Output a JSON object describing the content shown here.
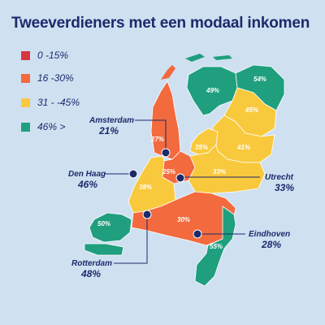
{
  "title": "Tweeverdieners met een modaal inkomen",
  "colors": {
    "red": "#d93540",
    "orange": "#f26a3d",
    "yellow": "#f9c93d",
    "green": "#1f9f7e",
    "navy": "#1c2a6b"
  },
  "legend": [
    {
      "label": "0 -15%",
      "color": "#d93540"
    },
    {
      "label": "16 -30%",
      "color": "#f26a3d"
    },
    {
      "label": "31 - -45%",
      "color": "#f9c93d"
    },
    {
      "label": "46% >",
      "color": "#1f9f7e"
    }
  ],
  "provinces": {
    "friesland": "49%",
    "groningen": "54%",
    "drenthe": "45%",
    "noord_holland": "27%",
    "flevoland": "35%",
    "overijssel": "41%",
    "utrecht": "25%",
    "gelderland": "33%",
    "zuid_holland": "38%",
    "zeeland": "50%",
    "noord_brabant": "30%",
    "limburg": "55%"
  },
  "cities": {
    "amsterdam": {
      "name": "Amsterdam",
      "value": "21%"
    },
    "den_haag": {
      "name": "Den Haag",
      "value": "46%"
    },
    "utrecht": {
      "name": "Utrecht",
      "value": "33%"
    },
    "rotterdam": {
      "name": "Rotterdam",
      "value": "48%"
    },
    "eindhoven": {
      "name": "Eindhoven",
      "value": "28%"
    }
  }
}
